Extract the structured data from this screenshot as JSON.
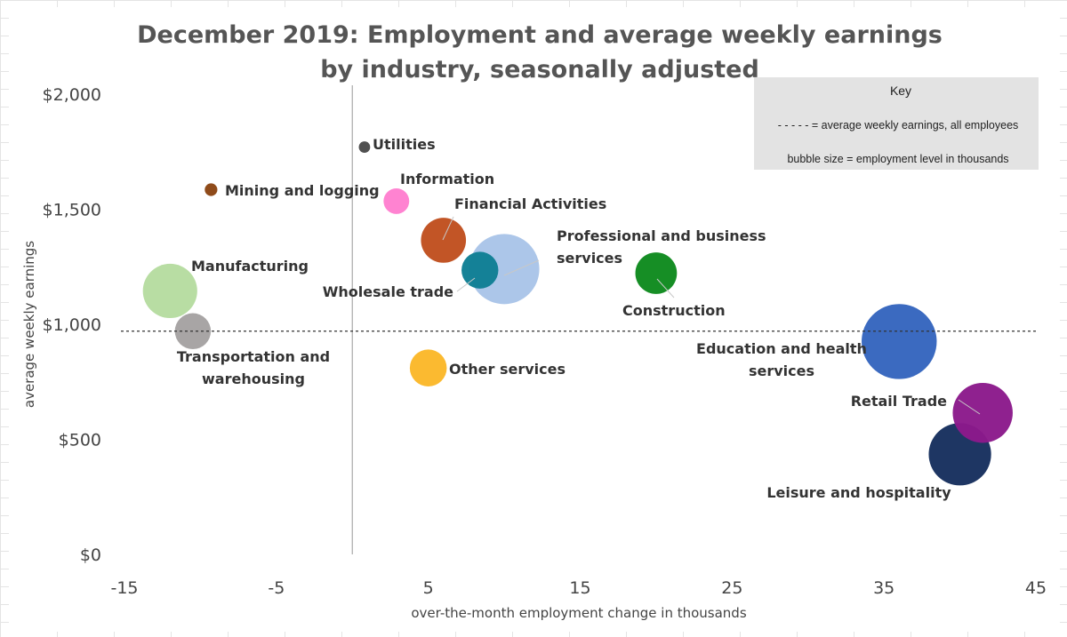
{
  "chart_data": {
    "type": "bubble",
    "title_lines": [
      "December 2019: Employment and average weekly earnings",
      "by industry, seasonally adjusted"
    ],
    "xlabel": "over-the-month employment change in thousands",
    "ylabel": "average weekly earnings",
    "xlim": [
      -15,
      45
    ],
    "ylim": [
      0,
      2000
    ],
    "x_ticks": [
      -15,
      -5,
      5,
      15,
      25,
      35,
      45
    ],
    "x_tick_labels": [
      "-15",
      "-5",
      "5",
      "15",
      "25",
      "35",
      "45"
    ],
    "y_ticks": [
      0,
      500,
      1000,
      1500,
      2000
    ],
    "y_tick_labels": [
      "$0",
      "$500",
      "$1,000",
      "$1,500",
      "$2,000"
    ],
    "reference_line": {
      "y": 970,
      "style": "dashed"
    },
    "vertical_axis_at_x": 0,
    "key": {
      "title": "Key",
      "lines": [
        "- - - - -  =  average weekly earnings, all employees",
        "bubble size  =  employment level in thousands"
      ]
    },
    "series": [
      {
        "name": "Utilities",
        "label_lines": [
          "Utilities"
        ],
        "x": 0.8,
        "y": 1770,
        "size": 560,
        "color": "#4a4a4a"
      },
      {
        "name": "Mining and logging",
        "label_lines": [
          "Mining and logging"
        ],
        "x": -9.3,
        "y": 1585,
        "size": 690,
        "color": "#8b4513"
      },
      {
        "name": "Information",
        "label_lines": [
          "Information"
        ],
        "x": 2.9,
        "y": 1535,
        "size": 2860,
        "color": "#ff7fd0"
      },
      {
        "name": "Financial Activities",
        "label_lines": [
          "Financial Activities"
        ],
        "x": 6.0,
        "y": 1365,
        "size": 8790,
        "color": "#c0501f"
      },
      {
        "name": "Professional and business services",
        "label_lines": [
          "Professional and business",
          "services"
        ],
        "x": 10.0,
        "y": 1240,
        "size": 21380,
        "color": "#a9c4e8"
      },
      {
        "name": "Wholesale trade",
        "label_lines": [
          "Wholesale trade"
        ],
        "x": 8.4,
        "y": 1235,
        "size": 5880,
        "color": "#0e7f94"
      },
      {
        "name": "Construction",
        "label_lines": [
          "Construction"
        ],
        "x": 20.0,
        "y": 1222,
        "size": 7500,
        "color": "#0e8a1e"
      },
      {
        "name": "Manufacturing",
        "label_lines": [
          "Manufacturing"
        ],
        "x": -12.0,
        "y": 1145,
        "size": 12820,
        "color": "#b6dca0"
      },
      {
        "name": "Transportation and warehousing",
        "label_lines": [
          "Transportation and",
          "warehousing"
        ],
        "x": -10.5,
        "y": 970,
        "size": 5620,
        "color": "#a5a2a2"
      },
      {
        "name": "Other services",
        "label_lines": [
          "Other services"
        ],
        "x": 5.0,
        "y": 810,
        "size": 5920,
        "color": "#fbb829"
      },
      {
        "name": "Education and health services",
        "label_lines": [
          "Education and health",
          "services"
        ],
        "x": 36.0,
        "y": 925,
        "size": 24460,
        "color": "#3565be"
      },
      {
        "name": "Retail Trade",
        "label_lines": [
          "Retail Trade"
        ],
        "x": 41.5,
        "y": 615,
        "size": 15610,
        "color": "#8b1a8b"
      },
      {
        "name": "Leisure and hospitality",
        "label_lines": [
          "Leisure and hospitality"
        ],
        "x": 40.0,
        "y": 435,
        "size": 16900,
        "color": "#17305e"
      }
    ]
  }
}
